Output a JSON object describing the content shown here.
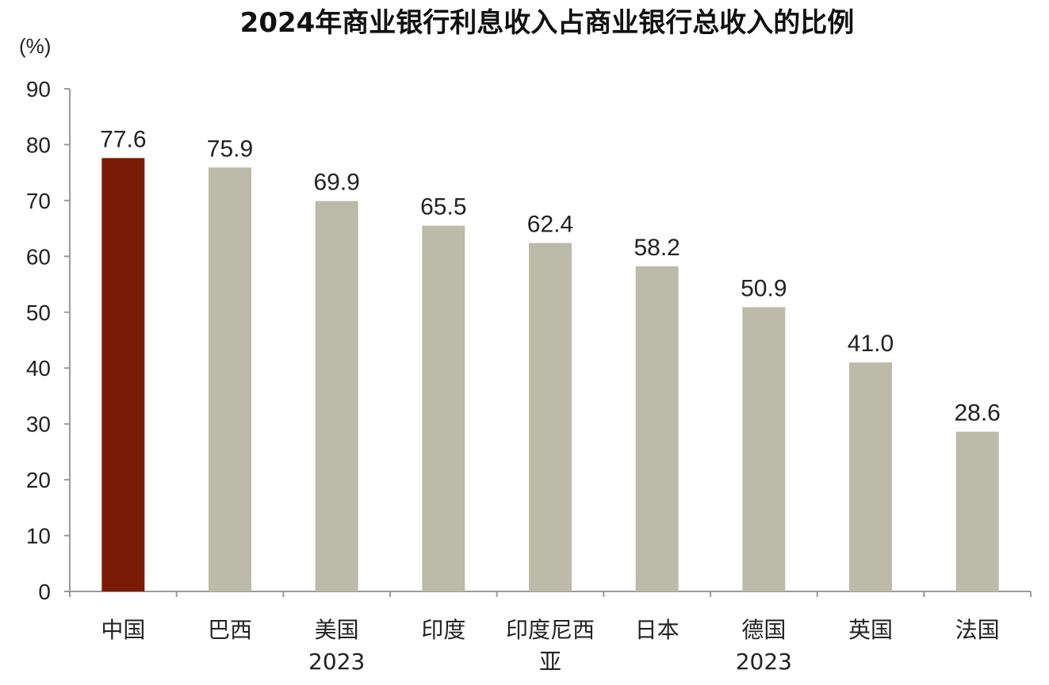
{
  "chart_data": {
    "type": "bar",
    "title": "2024年商业银行利息收入占商业银行总收入的比例",
    "ylabel": "(%)",
    "xlabel": "",
    "ylim": [
      0,
      90
    ],
    "yticks": [
      0,
      10,
      20,
      30,
      40,
      50,
      60,
      70,
      80,
      90
    ],
    "grid": false,
    "categories": [
      [
        "中国"
      ],
      [
        "巴西"
      ],
      [
        "美国",
        "2023"
      ],
      [
        "印度"
      ],
      [
        "印度尼西",
        "亚"
      ],
      [
        "日本"
      ],
      [
        "德国",
        "2023"
      ],
      [
        "英国"
      ],
      [
        "法国"
      ]
    ],
    "values": [
      77.6,
      75.9,
      69.9,
      65.5,
      62.4,
      58.2,
      50.9,
      41.0,
      28.6
    ],
    "value_labels": [
      "77.6",
      "75.9",
      "69.9",
      "65.5",
      "62.4",
      "58.2",
      "50.9",
      "41.0",
      "28.6"
    ],
    "highlight_index": 0,
    "colors": {
      "highlight": "#7a1b06",
      "default": "#bcbaa8",
      "axis": "#9a9a9a",
      "text": "#222222"
    }
  }
}
